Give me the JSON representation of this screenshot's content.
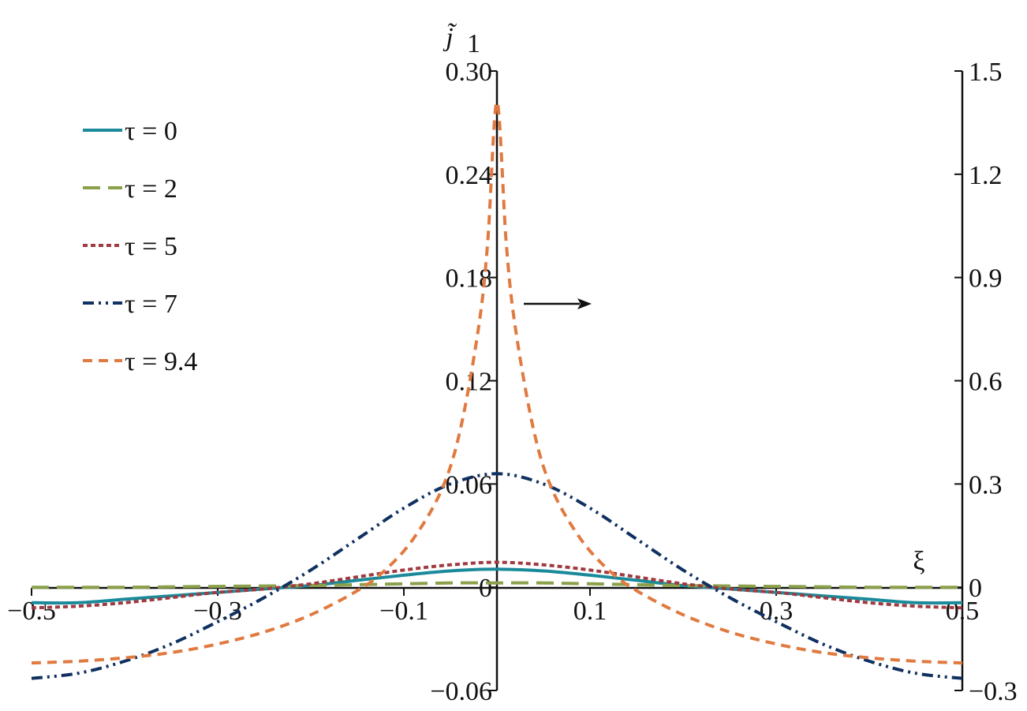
{
  "chart_data": {
    "type": "line",
    "xlabel": "ξ",
    "ylabel": "j̃",
    "ylabel_sub": "1",
    "xlim": [
      -0.5,
      0.5
    ],
    "ylim_left": [
      -0.06,
      0.3
    ],
    "ylim_right": [
      -0.3,
      1.5
    ],
    "x_ticks": [
      "−0.5",
      "−0.3",
      "−0.1",
      "0.1",
      "0.3",
      "0.5"
    ],
    "x_tick_values": [
      -0.5,
      -0.3,
      -0.1,
      0.1,
      0.3,
      0.5
    ],
    "y_ticks_left": [
      "−0.06",
      "0",
      "0.06",
      "0.12",
      "0.18",
      "0.24",
      "0.30"
    ],
    "y_tick_values_left": [
      -0.06,
      0,
      0.06,
      0.12,
      0.18,
      0.24,
      0.3
    ],
    "y_ticks_right": [
      "−0.3",
      "0",
      "0.3",
      "0.6",
      "0.9",
      "1.2",
      "1.5"
    ],
    "y_tick_values_right": [
      -0.3,
      0,
      0.3,
      0.6,
      0.9,
      1.2,
      1.5
    ],
    "annotation": "arrow pointing to right axis (τ = 9.4 uses right axis)",
    "legend_position": "top-left",
    "grid": false,
    "series": [
      {
        "name": "τ = 0",
        "color": "#1a8a9a",
        "dash": "solid",
        "axis": "left",
        "x": [
          -0.5,
          -0.45,
          -0.4,
          -0.35,
          -0.3,
          -0.25,
          -0.2,
          -0.15,
          -0.1,
          -0.05,
          0,
          0.05,
          0.1,
          0.15,
          0.2,
          0.25,
          0.3,
          0.35,
          0.4,
          0.45,
          0.5
        ],
        "y": [
          -0.009,
          -0.009,
          -0.007,
          -0.005,
          -0.003,
          -0.001,
          0.001,
          0.004,
          0.007,
          0.0095,
          0.0105,
          0.0095,
          0.007,
          0.004,
          0.001,
          -0.001,
          -0.003,
          -0.005,
          -0.007,
          -0.009,
          -0.009
        ]
      },
      {
        "name": "τ = 2",
        "color": "#8aa04a",
        "dash": "long",
        "axis": "left",
        "x": [
          -0.5,
          -0.4,
          -0.3,
          -0.2,
          -0.1,
          -0.05,
          0,
          0.05,
          0.1,
          0.2,
          0.3,
          0.4,
          0.5
        ],
        "y": [
          0.0,
          0.0,
          0.0005,
          0.001,
          0.002,
          0.0025,
          0.0025,
          0.0025,
          0.002,
          0.001,
          0.0005,
          0.0,
          0.0
        ]
      },
      {
        "name": "τ = 5",
        "color": "#a03a40",
        "dash": "dot",
        "axis": "left",
        "x": [
          -0.5,
          -0.45,
          -0.4,
          -0.35,
          -0.3,
          -0.25,
          -0.2,
          -0.15,
          -0.1,
          -0.05,
          0,
          0.05,
          0.1,
          0.15,
          0.2,
          0.25,
          0.3,
          0.35,
          0.4,
          0.45,
          0.5
        ],
        "y": [
          -0.012,
          -0.011,
          -0.009,
          -0.006,
          -0.003,
          -0.001,
          0.002,
          0.006,
          0.01,
          0.013,
          0.0145,
          0.013,
          0.01,
          0.006,
          0.002,
          -0.001,
          -0.003,
          -0.006,
          -0.009,
          -0.011,
          -0.012
        ]
      },
      {
        "name": "τ = 7",
        "color": "#0f3060",
        "dash": "dashdotdot",
        "axis": "left",
        "x": [
          -0.5,
          -0.45,
          -0.4,
          -0.35,
          -0.3,
          -0.25,
          -0.2,
          -0.15,
          -0.1,
          -0.05,
          0,
          0.05,
          0.1,
          0.15,
          0.2,
          0.25,
          0.3,
          0.35,
          0.4,
          0.45,
          0.5
        ],
        "y": [
          -0.053,
          -0.05,
          -0.043,
          -0.033,
          -0.02,
          -0.006,
          0.01,
          0.028,
          0.046,
          0.06,
          0.066,
          0.06,
          0.046,
          0.028,
          0.01,
          -0.006,
          -0.02,
          -0.033,
          -0.043,
          -0.05,
          -0.053
        ]
      },
      {
        "name": "τ = 9.4",
        "color": "#e07a40",
        "dash": "short",
        "axis": "right",
        "x": [
          -0.5,
          -0.45,
          -0.4,
          -0.35,
          -0.3,
          -0.25,
          -0.2,
          -0.15,
          -0.12,
          -0.09,
          -0.06,
          -0.04,
          -0.02,
          -0.01,
          0,
          0.01,
          0.02,
          0.04,
          0.06,
          0.09,
          0.12,
          0.15,
          0.2,
          0.25,
          0.3,
          0.35,
          0.4,
          0.45,
          0.5
        ],
        "y": [
          -0.22,
          -0.215,
          -0.205,
          -0.19,
          -0.165,
          -0.13,
          -0.08,
          -0.01,
          0.05,
          0.14,
          0.28,
          0.45,
          0.75,
          1.0,
          1.41,
          1.0,
          0.75,
          0.45,
          0.28,
          0.14,
          0.05,
          -0.01,
          -0.08,
          -0.13,
          -0.165,
          -0.19,
          -0.205,
          -0.215,
          -0.22
        ]
      }
    ]
  }
}
